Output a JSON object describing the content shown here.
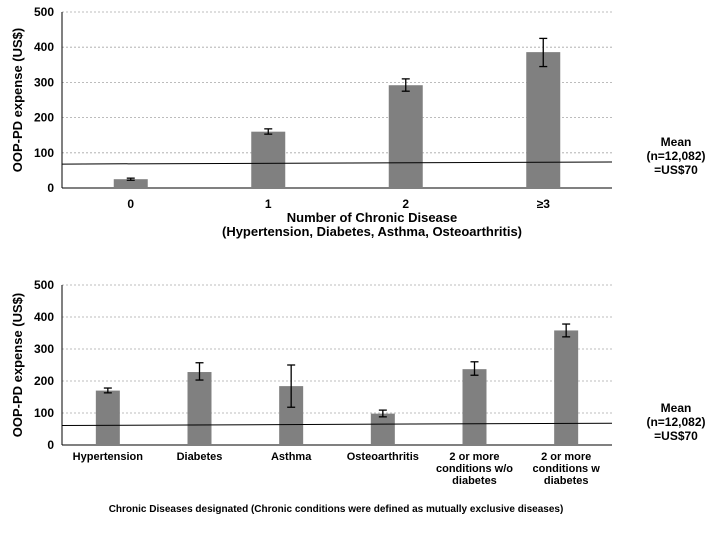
{
  "chart_data": [
    {
      "type": "bar",
      "categories": [
        "0",
        "1",
        "2",
        "≥3"
      ],
      "values": [
        25,
        160,
        292,
        386
      ],
      "error_bars": [
        [
          22,
          28
        ],
        [
          153,
          168
        ],
        [
          275,
          310
        ],
        [
          345,
          425
        ]
      ],
      "ylabel": "OOP-PD expense (US$)",
      "xlabel": [
        "Number of Chronic Disease",
        "(Hypertension, Diabetes, Asthma, Osteoarthritis)"
      ],
      "ylim": [
        0,
        500
      ],
      "yticks": [
        "0",
        "100",
        "200",
        "300",
        "400",
        "500"
      ],
      "grid": true,
      "mean_line": {
        "start": 68,
        "end": 74
      },
      "annotation": [
        "Mean",
        "(n=12,082)",
        "=US$70"
      ],
      "bar_color": "#808080"
    },
    {
      "type": "bar",
      "categories": [
        [
          "Hypertension"
        ],
        [
          "Diabetes"
        ],
        [
          "Asthma"
        ],
        [
          "Osteoarthritis"
        ],
        [
          "2 or more",
          "conditions w/o",
          "diabetes"
        ],
        [
          "2 or more",
          "conditions w",
          "diabetes"
        ]
      ],
      "values": [
        170,
        228,
        184,
        98,
        237,
        358
      ],
      "error_bars": [
        [
          163,
          178
        ],
        [
          203,
          257
        ],
        [
          118,
          250
        ],
        [
          88,
          109
        ],
        [
          218,
          260
        ],
        [
          338,
          378
        ]
      ],
      "ylabel": "OOP-PD expense (US$)",
      "xlabel": [
        "Chronic Diseases designated (Chronic conditions were defined as mutually exclusive diseases)"
      ],
      "ylim": [
        0,
        500
      ],
      "yticks": [
        "0",
        "100",
        "200",
        "300",
        "400",
        "500"
      ],
      "grid": true,
      "mean_line": {
        "start": 61,
        "end": 68
      },
      "annotation": [
        "Mean",
        "(n=12,082)",
        "=US$70"
      ],
      "bar_color": "#808080"
    }
  ]
}
